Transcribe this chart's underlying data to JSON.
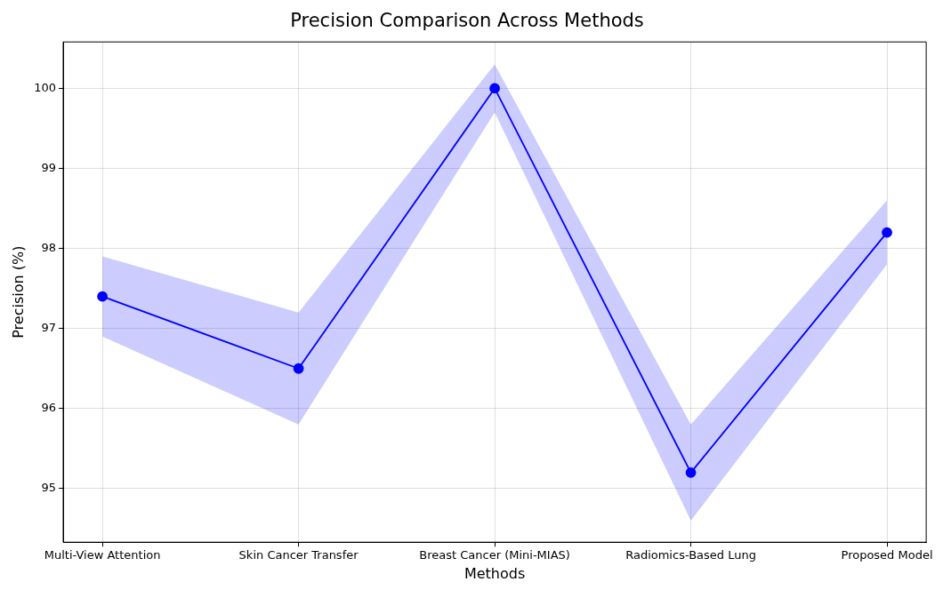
{
  "chart_data": {
    "type": "line",
    "title": "Precision Comparison Across Methods",
    "xlabel": "Methods",
    "ylabel": "Precision (%)",
    "categories": [
      "Multi-View Attention",
      "Skin Cancer Transfer",
      "Breast Cancer (Mini-MIAS)",
      "Radiomics-Based Lung",
      "Proposed Model"
    ],
    "series": [
      {
        "color": "#0000ff",
        "values": [
          97.4,
          96.5,
          100,
          95.2,
          98.2
        ],
        "lower": [
          96.9,
          95.8,
          99.7,
          94.6,
          97.8
        ],
        "upper": [
          97.9,
          97.2,
          100.3,
          95.8,
          98.6
        ]
      }
    ],
    "ylim": [
      94.33,
      100.58
    ],
    "yticks": [
      95,
      96,
      97,
      98,
      99,
      100
    ],
    "grid": true,
    "legend": false,
    "marker": "circle",
    "line_style": "solid"
  }
}
